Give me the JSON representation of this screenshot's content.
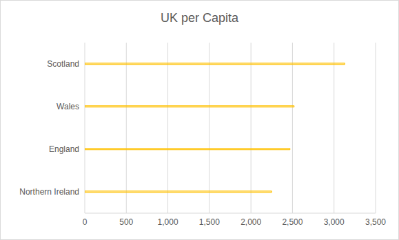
{
  "chart_data": {
    "type": "bar",
    "title": "UK per Capita",
    "orientation": "horizontal",
    "categories": [
      "Scotland",
      "Wales",
      "England",
      "Northern Ireland"
    ],
    "values": [
      3130,
      2520,
      2470,
      2250
    ],
    "color": "#ffc000",
    "xlim": [
      0,
      3500
    ],
    "xticks": [
      0,
      {
        "value": 500,
        "label": "500"
      },
      {
        "value": 1000,
        "label": "1,000"
      },
      {
        "value": 1500,
        "label": "1,500"
      },
      {
        "value": 2000,
        "label": "2,000"
      },
      {
        "value": 2500,
        "label": "2,500"
      },
      {
        "value": 3000,
        "label": "3,000"
      },
      {
        "value": 3500,
        "label": "3,500"
      }
    ],
    "grid": true
  }
}
